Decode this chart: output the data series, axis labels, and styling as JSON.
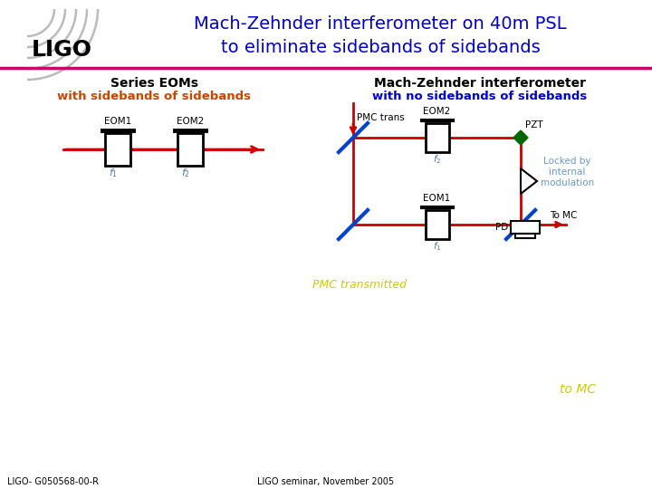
{
  "title_line1": "Mach-Zehnder interferometer on 40m PSL",
  "title_line2": "to eliminate sidebands of sidebands",
  "title_color": "#0000CC",
  "title_fontsize": 14,
  "bg_color": "#FFFFFF",
  "header_line_color": "#CC0066",
  "left_label1": "Series EOMs",
  "left_label2": "with sidebands of sidebands",
  "left_label1_color": "#000000",
  "left_label2_color": "#CC4400",
  "right_title1": "Mach-Zehnder interferometer",
  "right_title2": "with no sidebands of sidebands",
  "right_title1_color": "#000000",
  "right_title2_color": "#0000CC",
  "pmc_trans_label": "PMC trans",
  "eom2_label": "EOM2",
  "eom1_label": "EOM1",
  "pzt_label": "PZT",
  "pd_label": "PD",
  "locked_label": "Locked by\ninternal\nmodulation",
  "locked_color": "#6699CC",
  "tomc_label": "To MC",
  "tomc_color": "#000000",
  "pmc_transmitted_label": "PMC transmitted",
  "pmc_transmitted_color": "#CCCC00",
  "tomc_right_label": "to MC",
  "tomc_right_color": "#CCCC00",
  "footer_left": "LIGO- G050568-00-R",
  "footer_right": "LIGO seminar, November 2005",
  "footer_color": "#000000",
  "beam_color": "#CC0000",
  "bs_color": "#0044CC",
  "pzt_marker_color": "#006600"
}
